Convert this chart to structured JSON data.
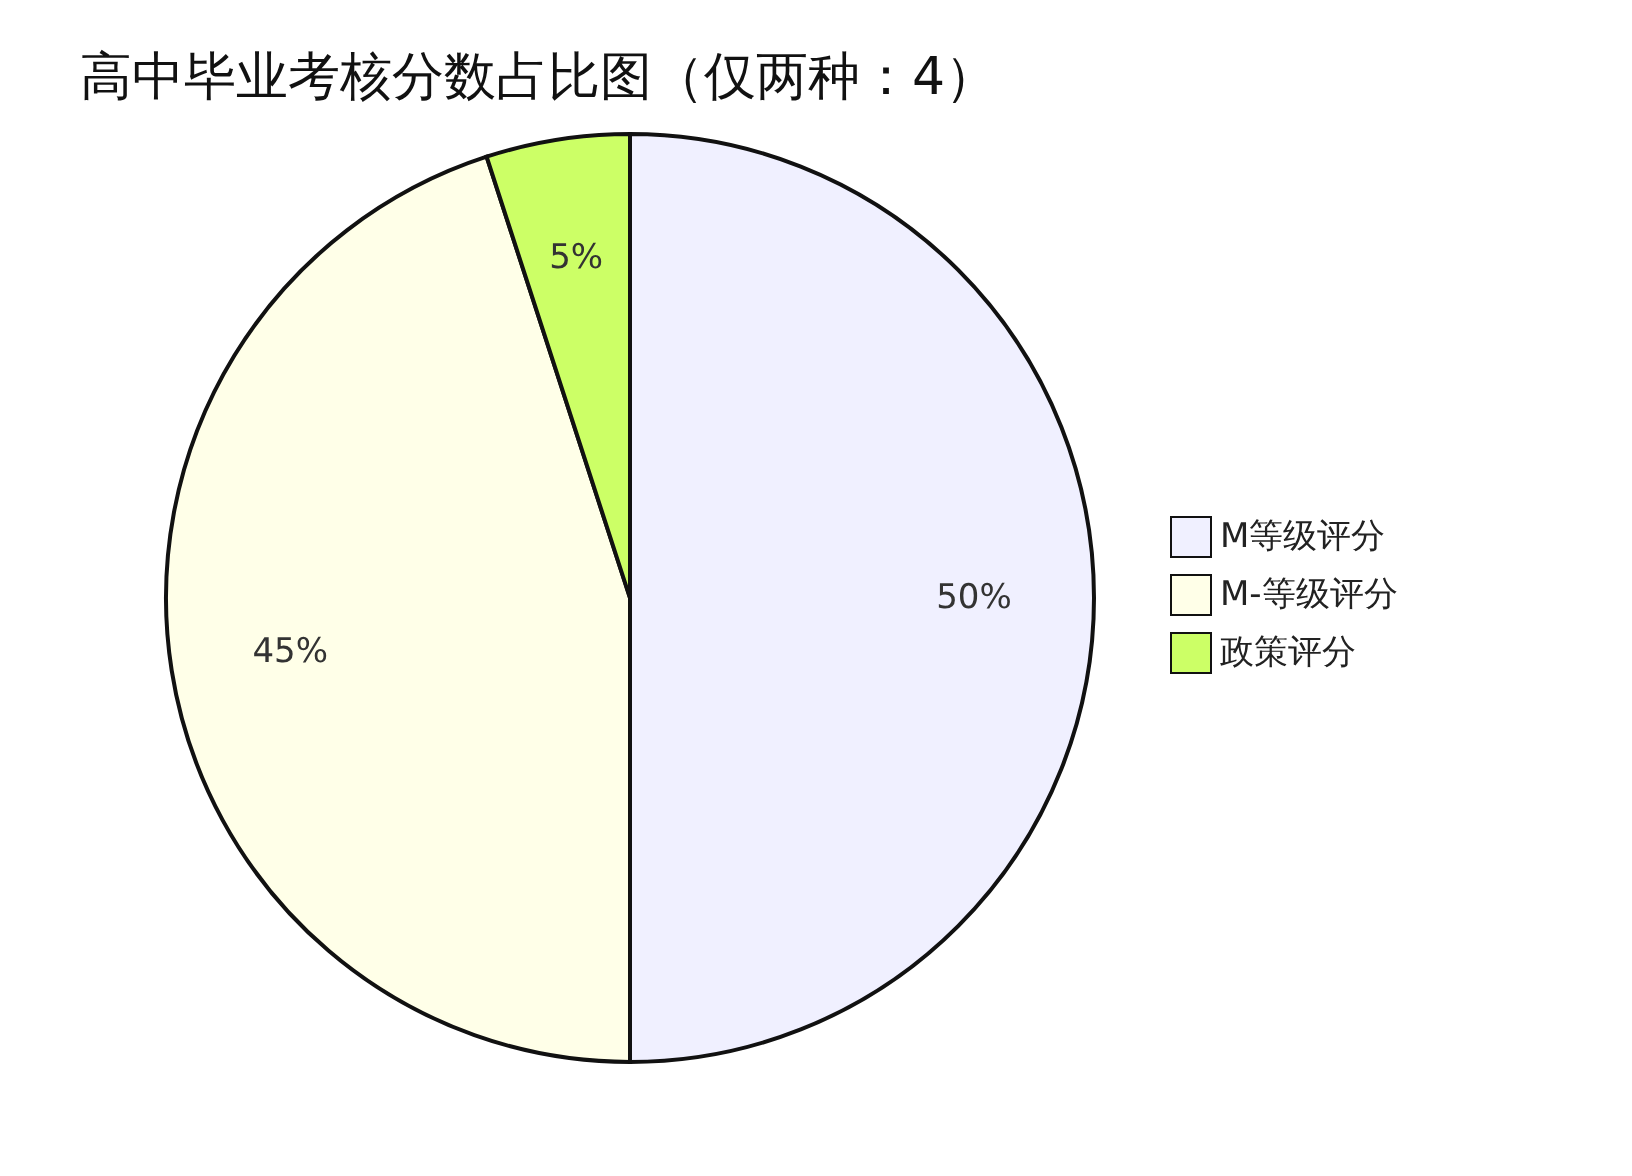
{
  "chart_data": {
    "type": "pie",
    "title": "高中毕业考核分数占比图（仅两种：4）",
    "categories": [
      "M等级评分",
      "M-等级评分",
      "政策评分"
    ],
    "values": [
      50,
      45,
      5
    ],
    "colors": [
      "#f0f0ff",
      "#ffffe8",
      "#ccff66"
    ],
    "value_labels": [
      "50%",
      "45%",
      "5%"
    ],
    "legend": "right"
  }
}
